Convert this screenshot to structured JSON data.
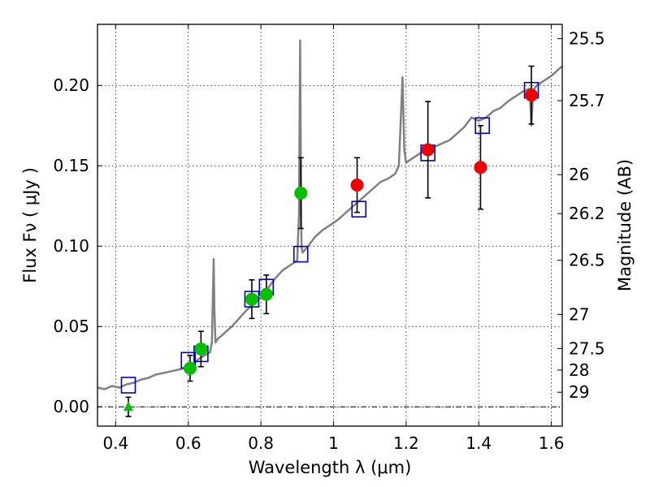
{
  "chart_data": {
    "type": "scatter",
    "title": "",
    "xlabel": "Wavelength  λ (μm)",
    "ylabel": "Flux  Fν  ( μJy )",
    "y2label": "Magnitude (AB)",
    "xlim": [
      0.35,
      1.63
    ],
    "ylim": [
      -0.012,
      0.238
    ],
    "grid": true,
    "grid_style": "dotted",
    "x_ticks": [
      {
        "value": 0.4,
        "label": "0.4"
      },
      {
        "value": 0.6,
        "label": "0.6"
      },
      {
        "value": 0.8,
        "label": "0.8"
      },
      {
        "value": 1.0,
        "label": "1"
      },
      {
        "value": 1.2,
        "label": "1.2"
      },
      {
        "value": 1.4,
        "label": "1.4"
      },
      {
        "value": 1.6,
        "label": "1.6"
      }
    ],
    "y_ticks": [
      {
        "value": 0.0,
        "label": "0.00"
      },
      {
        "value": 0.05,
        "label": "0.05"
      },
      {
        "value": 0.1,
        "label": "0.10"
      },
      {
        "value": 0.15,
        "label": "0.15"
      },
      {
        "value": 0.2,
        "label": "0.20"
      }
    ],
    "mag_ticks": [
      {
        "label": "25.5",
        "flux": 0.2291
      },
      {
        "label": "25.7",
        "flux": 0.1905
      },
      {
        "label": "26",
        "flux": 0.1445
      },
      {
        "label": "26.2",
        "flux": 0.1202
      },
      {
        "label": "26.5",
        "flux": 0.0912
      },
      {
        "label": "27",
        "flux": 0.0575
      },
      {
        "label": "27.5",
        "flux": 0.0363
      },
      {
        "label": "28",
        "flux": 0.0229
      },
      {
        "label": "29",
        "flux": 0.0091
      }
    ],
    "zero_line": 0.0,
    "series": [
      {
        "style": "template_spectrum",
        "color": "#808080",
        "x": [
          0.35,
          0.37,
          0.39,
          0.41,
          0.43,
          0.45,
          0.47,
          0.49,
          0.51,
          0.53,
          0.55,
          0.57,
          0.59,
          0.61,
          0.63,
          0.645,
          0.66,
          0.665,
          0.67,
          0.672,
          0.675,
          0.68,
          0.7,
          0.72,
          0.74,
          0.76,
          0.78,
          0.8,
          0.82,
          0.84,
          0.86,
          0.88,
          0.9,
          0.905,
          0.908,
          0.91,
          0.912,
          0.915,
          0.93,
          0.95,
          0.97,
          0.99,
          1.01,
          1.03,
          1.05,
          1.07,
          1.09,
          1.11,
          1.13,
          1.15,
          1.17,
          1.18,
          1.19,
          1.195,
          1.2,
          1.22,
          1.24,
          1.26,
          1.28,
          1.3,
          1.32,
          1.34,
          1.36,
          1.38,
          1.4,
          1.42,
          1.44,
          1.46,
          1.48,
          1.5,
          1.52,
          1.54,
          1.545,
          1.55,
          1.56,
          1.58,
          1.6,
          1.62,
          1.63
        ],
        "y": [
          0.012,
          0.011,
          0.013,
          0.012,
          0.014,
          0.015,
          0.017,
          0.018,
          0.02,
          0.021,
          0.022,
          0.023,
          0.024,
          0.026,
          0.03,
          0.032,
          0.034,
          0.04,
          0.092,
          0.06,
          0.04,
          0.042,
          0.046,
          0.05,
          0.055,
          0.06,
          0.064,
          0.068,
          0.074,
          0.08,
          0.085,
          0.088,
          0.091,
          0.12,
          0.228,
          0.15,
          0.1,
          0.096,
          0.1,
          0.106,
          0.11,
          0.113,
          0.116,
          0.12,
          0.124,
          0.128,
          0.132,
          0.136,
          0.14,
          0.142,
          0.145,
          0.15,
          0.205,
          0.16,
          0.152,
          0.155,
          0.158,
          0.16,
          0.162,
          0.164,
          0.166,
          0.17,
          0.174,
          0.18,
          0.178,
          0.18,
          0.184,
          0.186,
          0.19,
          0.193,
          0.196,
          0.198,
          0.175,
          0.197,
          0.2,
          0.203,
          0.206,
          0.21,
          0.212
        ]
      },
      {
        "style": "model_photometry",
        "marker": "open_square",
        "color": "#0000cc",
        "x": [
          0.435,
          0.6,
          0.635,
          0.775,
          0.815,
          0.91,
          1.07,
          1.26,
          1.41,
          1.545
        ],
        "y": [
          0.0135,
          0.029,
          0.033,
          0.067,
          0.0745,
          0.095,
          0.123,
          0.158,
          0.175,
          0.197
        ]
      },
      {
        "style": "observed_optical",
        "marker": "filled_circle",
        "color": "#00c000",
        "x": [
          0.605,
          0.635,
          0.775,
          0.815,
          0.91
        ],
        "y": [
          0.024,
          0.036,
          0.067,
          0.07,
          0.133
        ],
        "err": [
          0.008,
          0.011,
          0.012,
          0.012,
          0.022
        ]
      },
      {
        "style": "observed_infrared",
        "marker": "filled_circle",
        "color": "#ee0000",
        "x": [
          1.065,
          1.26,
          1.405,
          1.545
        ],
        "y": [
          0.138,
          0.16,
          0.149,
          0.194
        ],
        "err": [
          0.017,
          0.03,
          0.026,
          0.018
        ]
      },
      {
        "style": "upper_limit",
        "marker": "filled_triangle",
        "color": "#00c000",
        "x": [
          0.435
        ],
        "y": [
          0.0
        ],
        "err": [
          0.006
        ]
      }
    ]
  }
}
